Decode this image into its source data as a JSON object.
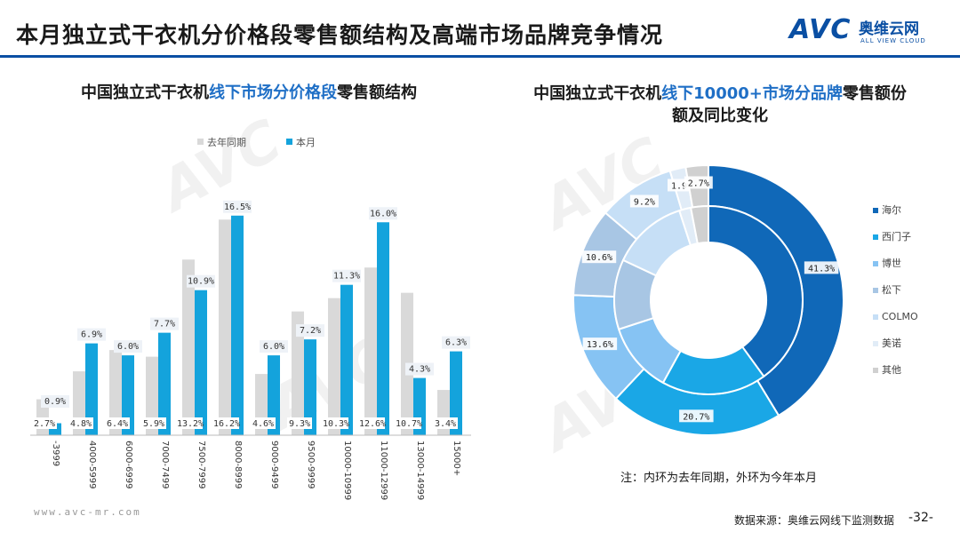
{
  "header": {
    "title": "本月独立式干衣机分价格段零售额结构及高端市场品牌竞争情况",
    "logo_avc": "AVC",
    "logo_cn": "奥维云网",
    "logo_en": "ALL VIEW CLOUD"
  },
  "colors": {
    "bar_last_year": "#d9d9d9",
    "bar_current": "#14a3dc",
    "accent": "#0a4fa3"
  },
  "chart_data": [
    {
      "type": "bar",
      "title_parts": [
        "中国独立式干衣机",
        "线下市场分价格段",
        "零售额结构"
      ],
      "categories": [
        "-3999",
        "4000-5999",
        "6000-6999",
        "7000-7499",
        "7500-7999",
        "8000-8999",
        "9000-9499",
        "9500-9999",
        "10000-10999",
        "11000-12999",
        "13000-14999",
        "15000+"
      ],
      "series": [
        {
          "name": "去年同期",
          "values": [
            2.7,
            4.8,
            6.4,
            5.9,
            13.2,
            16.2,
            4.6,
            9.3,
            10.3,
            12.6,
            10.7,
            3.4
          ],
          "labels": [
            "2.7%",
            "4.8%",
            "6.4%",
            "5.9%",
            "13.2%",
            "16.2%",
            "4.6%",
            "9.3%",
            "10.3%",
            "12.6%",
            "10.7%",
            "3.4%"
          ]
        },
        {
          "name": "本月",
          "values": [
            0.9,
            6.9,
            6.0,
            7.7,
            10.9,
            16.5,
            6.0,
            7.2,
            11.3,
            16.0,
            4.3,
            6.3
          ],
          "labels": [
            "0.9%",
            "6.9%",
            "6.0%",
            "7.7%",
            "10.9%",
            "16.5%",
            "6.0%",
            "7.2%",
            "11.3%",
            "16.0%",
            "4.3%",
            "6.3%"
          ]
        }
      ],
      "ylim": [
        0,
        18
      ]
    },
    {
      "type": "pie",
      "subtype": "double-donut",
      "title_parts": [
        "中国独立式干衣机",
        "线下10000+市场分品牌",
        "零售额份额及同比变化"
      ],
      "categories": [
        "海尔",
        "西门子",
        "博世",
        "松下",
        "COLMO",
        "美诺",
        "其他"
      ],
      "colors": [
        "#1068b8",
        "#1aa7e6",
        "#86c3f3",
        "#a8c6e4",
        "#c6dff6",
        "#e1ecf7",
        "#d0d0d0"
      ],
      "outer_label": "本月",
      "outer_values": [
        41.3,
        20.7,
        13.6,
        10.6,
        9.2,
        1.9,
        2.7
      ],
      "outer_labels": [
        "41.3%",
        "20.7%",
        "13.6%",
        "10.6%",
        "9.2%",
        "1.9%",
        "2.7%"
      ],
      "inner_label": "去年同期",
      "inner_values": [
        40.0,
        18.0,
        12.0,
        12.0,
        13.0,
        2.0,
        3.0
      ]
    }
  ],
  "note": "注：内环为去年同期，外环为今年本月",
  "footer": {
    "site": "www.avc-mr.com",
    "source": "数据来源：奥维云网线下监测数据",
    "page": "-32-"
  },
  "watermark": "AVC"
}
